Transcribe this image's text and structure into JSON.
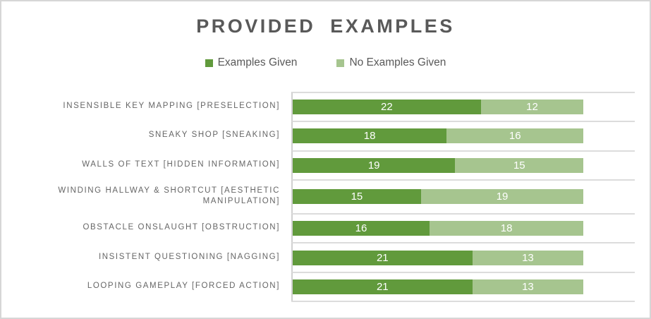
{
  "page": {
    "background": "#FFFFFF",
    "frame_border_color": "#D6D6D6"
  },
  "chart_data": {
    "type": "bar",
    "orientation": "horizontal",
    "stacked": true,
    "title": "PROVIDED EXAMPLES",
    "categories": [
      "INSENSIBLE KEY MAPPING [PRESELECTION]",
      "SNEAKY SHOP [SNEAKING]",
      "WALLS OF TEXT [HIDDEN INFORMATION]",
      "WINDING HALLWAY & SHORTCUT [AESTHETIC MANIPULATION]",
      "OBSTACLE ONSLAUGHT [OBSTRUCTION]",
      "INSISTENT QUESTIONING [NAGGING]",
      "LOOPING GAMEPLAY [FORCED ACTION]"
    ],
    "series": [
      {
        "name": "Examples Given",
        "color": "#619A3C",
        "values": [
          22,
          18,
          19,
          15,
          16,
          21,
          21
        ]
      },
      {
        "name": "No Examples Given",
        "color": "#A6C58F",
        "values": [
          12,
          16,
          15,
          19,
          18,
          13,
          13
        ]
      }
    ],
    "xlim": [
      0,
      40
    ],
    "value_labels": "inside-center",
    "legend_position": "top-center",
    "gridlines": "horizontal category separators",
    "colors": {
      "title_text": "#595959",
      "category_text": "#666666",
      "value_text": "#FFFFFF",
      "gridline": "#DCDCDC",
      "axis_line": "#D0D0D0"
    }
  }
}
